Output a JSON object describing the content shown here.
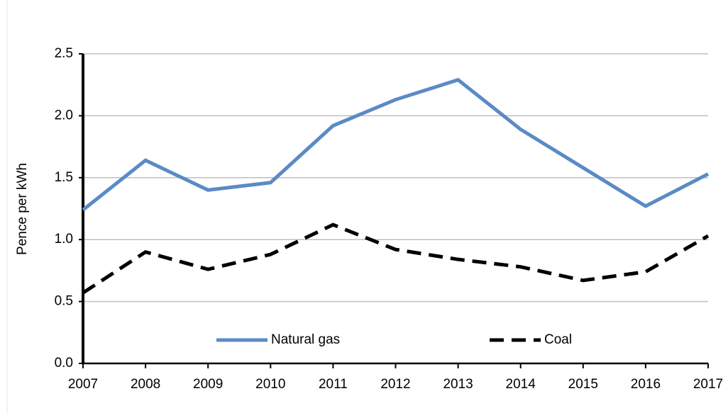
{
  "chart_data": {
    "type": "line",
    "y_label": "Pence per kWh",
    "x": [
      2007,
      2008,
      2009,
      2010,
      2011,
      2012,
      2013,
      2014,
      2015,
      2016,
      2017
    ],
    "xlim": [
      2007,
      2017
    ],
    "xticks": [
      2007,
      2008,
      2009,
      2010,
      2011,
      2012,
      2013,
      2014,
      2015,
      2016,
      2017
    ],
    "ylim": [
      0,
      2.5
    ],
    "yticks": [
      {
        "value": 0,
        "label": "0.0"
      },
      0.5,
      {
        "value": 1,
        "label": "1.0"
      },
      1.5,
      {
        "value": 2,
        "label": "2.0"
      },
      2.5
    ],
    "grid": true,
    "legend": "bottom",
    "series": [
      {
        "name": "Natural gas",
        "color": "#5b8ac6",
        "dash": "solid",
        "values": [
          1.24,
          1.64,
          1.4,
          1.46,
          1.92,
          2.13,
          2.29,
          1.89,
          1.58,
          1.27,
          1.53
        ]
      },
      {
        "name": "Coal",
        "color": "#000000",
        "dash": "dashed",
        "values": [
          0.57,
          0.9,
          0.76,
          0.88,
          1.12,
          0.92,
          0.84,
          0.78,
          0.67,
          0.74,
          1.03
        ]
      }
    ]
  }
}
